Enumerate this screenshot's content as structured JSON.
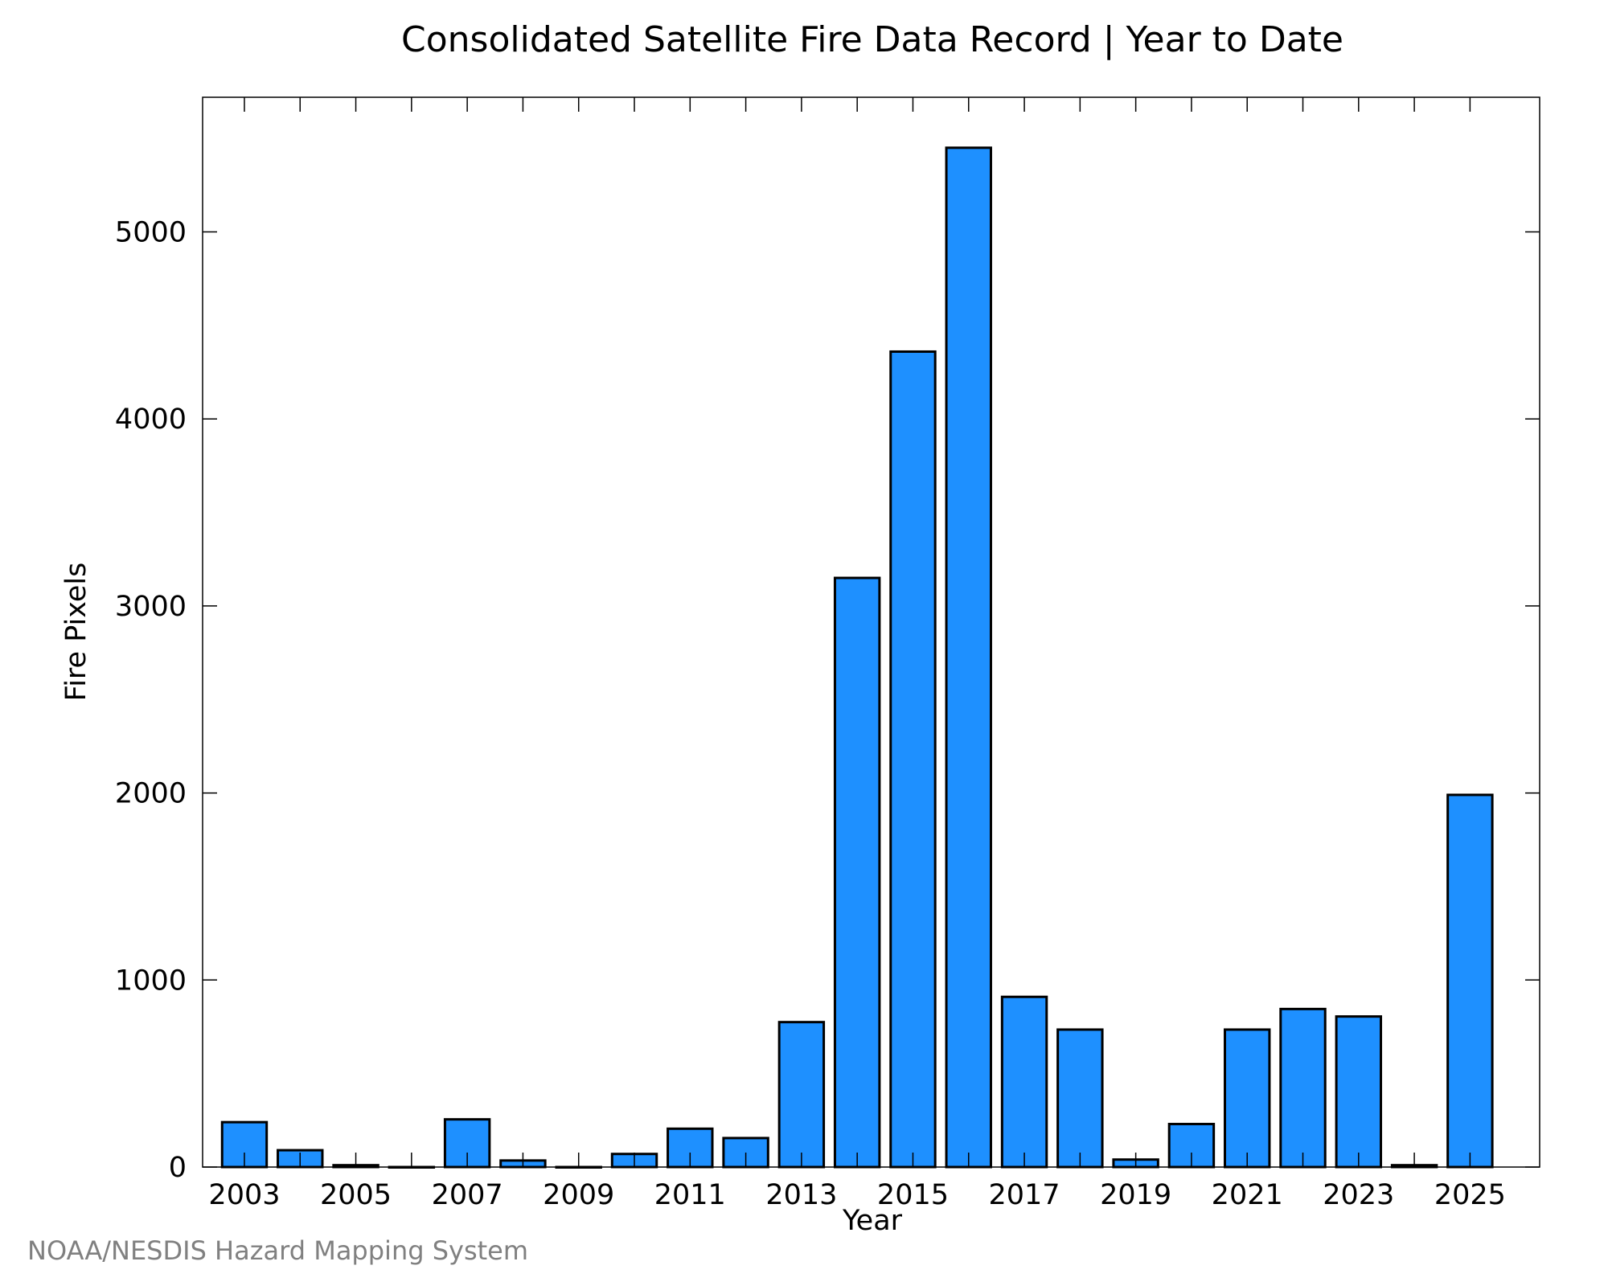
{
  "chart_data": {
    "type": "bar",
    "title": "Consolidated Satellite Fire Data Record | Year to Date",
    "xlabel": "Year",
    "ylabel": "Fire Pixels",
    "x": [
      2003,
      2004,
      2005,
      2006,
      2007,
      2008,
      2009,
      2010,
      2011,
      2012,
      2013,
      2014,
      2015,
      2016,
      2017,
      2018,
      2019,
      2020,
      2021,
      2022,
      2023,
      2024,
      2025
    ],
    "values": [
      240,
      90,
      10,
      0,
      255,
      35,
      0,
      70,
      205,
      155,
      775,
      3150,
      4360,
      5450,
      910,
      735,
      40,
      230,
      735,
      845,
      805,
      10,
      1990
    ],
    "x_tick_labels": [
      "2003",
      "2005",
      "2007",
      "2009",
      "2011",
      "2013",
      "2015",
      "2017",
      "2019",
      "2021",
      "2023",
      "2025"
    ],
    "y_ticks": [
      0,
      1000,
      2000,
      3000,
      4000,
      5000
    ],
    "ylim": [
      0,
      5720
    ],
    "xlim": [
      2002.25,
      2026.25
    ],
    "bar_color": "#1e90ff",
    "edge_color": "#000000",
    "grid": false,
    "legend": "none"
  },
  "footer": {
    "credit": "NOAA/NESDIS Hazard Mapping System"
  }
}
